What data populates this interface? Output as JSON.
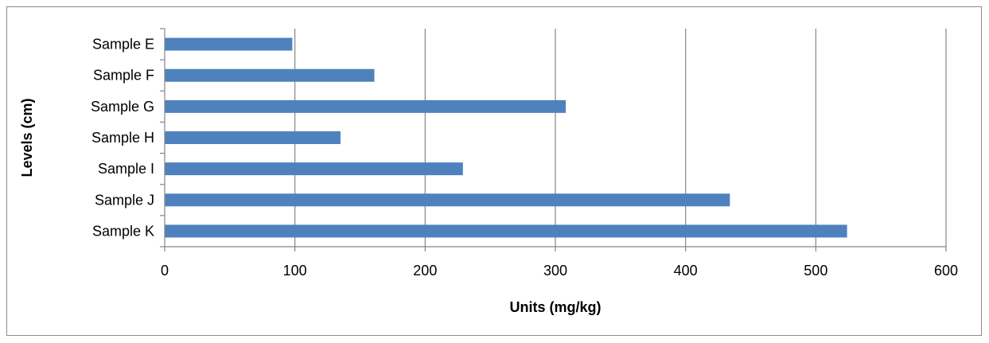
{
  "chart_data": {
    "type": "bar",
    "orientation": "horizontal",
    "categories": [
      "Sample E",
      "Sample F",
      "Sample G",
      "Sample H",
      "Sample I",
      "Sample J",
      "Sample K"
    ],
    "series": [
      {
        "values": [
          98,
          161,
          308,
          135,
          229,
          434,
          524
        ]
      }
    ],
    "xlabel": "Units (mg/kg)",
    "ylabel": "Levels (cm)",
    "xlim": [
      0,
      600
    ],
    "xticks": [
      0,
      100,
      200,
      300,
      400,
      500,
      600
    ],
    "grid": "vertical",
    "legend": "none",
    "colors": {
      "bar": "#4F81BD",
      "grid": "#868686",
      "axis": "#868686"
    }
  }
}
